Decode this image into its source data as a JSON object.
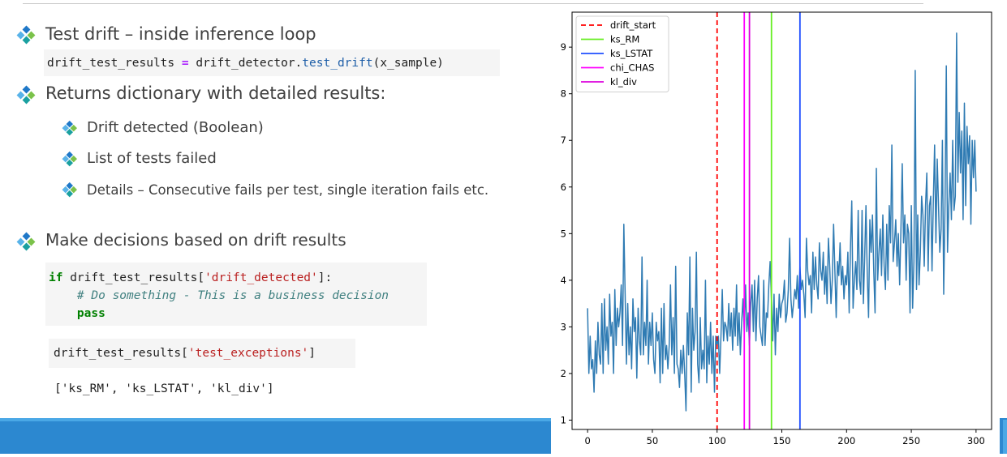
{
  "slide": {
    "bullets": [
      {
        "text": "Test drift – inside inference loop"
      },
      {
        "text": "Returns dictionary with detailed results:"
      },
      {
        "text": "Drift detected (Boolean)"
      },
      {
        "text": "List of tests failed"
      },
      {
        "text": "Details – Consecutive fails per test, single iteration fails etc."
      },
      {
        "text": "Make decisions based on drift results"
      }
    ],
    "code1": {
      "var": "drift_test_results",
      "eq": " = ",
      "obj": "drift_detector.",
      "method": "test_drift",
      "args": "(x_sample)"
    },
    "code2": {
      "line1_kw": "if",
      "line1_var": " drift_test_results[",
      "line1_key": "'drift_detected'",
      "line1_end": "]:",
      "line2_comment": "# Do something - This is a business decision",
      "line3_kw": "pass"
    },
    "code3": {
      "var": "drift_test_results[",
      "key": "'test_exceptions'",
      "end": "]"
    },
    "output": "['ks_RM', 'ks_LSTAT', 'kl_div']",
    "bullet_colors": {
      "main": [
        "#1f78c8",
        "#59b3e9",
        "#7bc24a",
        "#1aa0a0"
      ]
    }
  },
  "chart_data": {
    "type": "line",
    "xlim": [
      -12,
      312
    ],
    "ylim": [
      0.8,
      9.75
    ],
    "xticks": [
      0,
      50,
      100,
      150,
      200,
      250,
      300
    ],
    "yticks": [
      1,
      2,
      3,
      4,
      5,
      6,
      7,
      8,
      9
    ],
    "legend_position": "top-left",
    "series": [
      {
        "name": "",
        "color": "#2f7bb3",
        "x_start": 0,
        "values": [
          3.4,
          2.0,
          2.8,
          2.1,
          2.3,
          1.6,
          2.7,
          2.0,
          3.1,
          2.4,
          2.2,
          3.5,
          2.0,
          3.6,
          2.5,
          3.0,
          2.2,
          3.7,
          2.8,
          3.1,
          2.0,
          3.8,
          2.6,
          3.4,
          3.0,
          3.3,
          3.9,
          2.6,
          5.2,
          3.7,
          2.2,
          3.5,
          2.4,
          3.0,
          2.1,
          3.6,
          2.9,
          3.2,
          1.9,
          3.4,
          2.7,
          2.4,
          4.5,
          2.4,
          3.1,
          2.6,
          4.0,
          2.2,
          3.1,
          2.6,
          3.3,
          2.3,
          2.0,
          3.1,
          2.7,
          2.9,
          1.8,
          3.4,
          2.0,
          3.5,
          2.3,
          2.6,
          2.1,
          2.6,
          3.9,
          2.4,
          3.2,
          2.0,
          4.3,
          2.2,
          2.1,
          1.7,
          2.5,
          2.0,
          2.6,
          2.0,
          1.2,
          3.3,
          2.4,
          4.5,
          1.6,
          3.4,
          2.5,
          2.9,
          4.6,
          2.2,
          1.8,
          3.2,
          2.1,
          2.5,
          2.1,
          4.0,
          1.8,
          2.8,
          2.2,
          3.1,
          2.0,
          2.8,
          1.6,
          2.8,
          2.6,
          2.8,
          2.0,
          2.8,
          3.8,
          2.7,
          3.1,
          3.0,
          2.7,
          3.5,
          2.8,
          3.3,
          2.5,
          3.4,
          2.8,
          3.9,
          2.6,
          3.3,
          2.4,
          3.1,
          3.6,
          2.9,
          3.9,
          2.9,
          3.3,
          2.6,
          3.5,
          3.9,
          2.9,
          4.0,
          2.7,
          3.6,
          4.1,
          3.0,
          2.8,
          2.6,
          4.0,
          2.6,
          3.3,
          3.2,
          3.9,
          4.4,
          3.6,
          2.7,
          3.7,
          2.4,
          3.4,
          2.9,
          3.7,
          3.2,
          3.5,
          3.6,
          4.0,
          3.1,
          3.3,
          3.8,
          4.9,
          3.6,
          3.2,
          3.5,
          3.8,
          3.6,
          4.1,
          3.4,
          4.3,
          3.8,
          4.0,
          3.7,
          3.2,
          4.9,
          4.2,
          3.9,
          4.1,
          3.3,
          4.6,
          3.8,
          4.5,
          3.9,
          3.6,
          4.8,
          4.2,
          4.0,
          4.6,
          3.7,
          4.3,
          3.5,
          4.9,
          4.3,
          3.5,
          4.0,
          5.2,
          4.2,
          3.2,
          4.4,
          4.1,
          4.8,
          3.9,
          4.3,
          3.6,
          4.1,
          3.9,
          4.6,
          3.3,
          4.7,
          5.7,
          3.4,
          4.0,
          4.4,
          3.8,
          5.5,
          4.0,
          3.7,
          5.5,
          3.5,
          4.5,
          5.6,
          4.1,
          3.2,
          5.3,
          4.6,
          5.4,
          4.2,
          3.3,
          6.4,
          4.0,
          4.6,
          5.1,
          4.1,
          5.4,
          4.3,
          3.8,
          5.2,
          4.0,
          5.6,
          4.8,
          6.9,
          4.4,
          4.8,
          5.3,
          4.3,
          5.0,
          3.9,
          5.1,
          6.5,
          4.8,
          5.4,
          4.0,
          5.2,
          5.0,
          3.3,
          5.6,
          3.4,
          4.4,
          8.5,
          3.8,
          5.4,
          3.9,
          4.6,
          5.8,
          5.4,
          4.3,
          5.6,
          6.3,
          4.2,
          5.6,
          5.8,
          4.2,
          5.7,
          6.9,
          4.8,
          6.6,
          5.6,
          4.6,
          5.1,
          7.0,
          3.7,
          5.6,
          8.6,
          4.6,
          5.6,
          6.3,
          5.3,
          7.0,
          5.5,
          5.8,
          9.3,
          6.1,
          7.6,
          6.3,
          7.2,
          5.3,
          7.8,
          5.6,
          7.3,
          6.5,
          7.1,
          5.2,
          7.0,
          6.2,
          7.0,
          5.9
        ]
      }
    ],
    "vlines": [
      {
        "name": "drift_start",
        "x": 100,
        "color": "#ff0000",
        "dashed": true
      },
      {
        "name": "ks_RM",
        "x": 142,
        "color": "#66ee22",
        "dashed": false
      },
      {
        "name": "ks_LSTAT",
        "x": 164,
        "color": "#1f4fff",
        "dashed": false
      },
      {
        "name": "chi_CHAS",
        "x": 121,
        "color": "#ff00ff",
        "dashed": false
      },
      {
        "name": "kl_div",
        "x": 125,
        "color": "#dd00dd",
        "dashed": false
      }
    ]
  }
}
